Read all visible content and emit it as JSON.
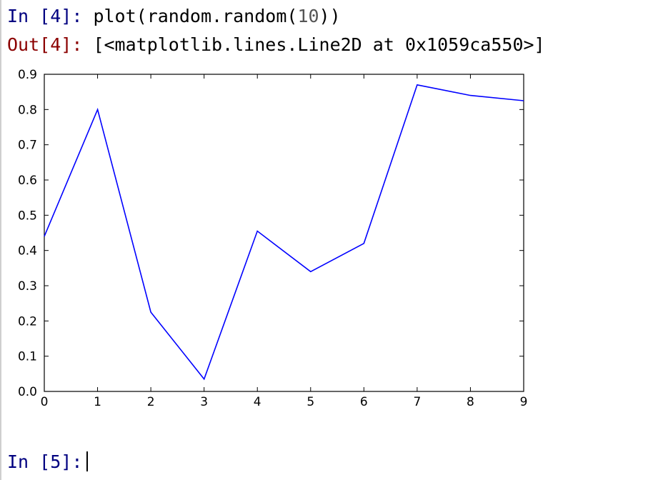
{
  "cells": {
    "in4": {
      "prompt_label": "In",
      "prompt_num": "4",
      "code_before": "plot(random.random(",
      "code_num": "10",
      "code_after": "))"
    },
    "out4": {
      "prompt_label": "Out",
      "prompt_num": "4",
      "text": "[<matplotlib.lines.Line2D at 0x1059ca550>]"
    },
    "in5": {
      "prompt_label": "In",
      "prompt_num": "5"
    }
  },
  "chart_data": {
    "type": "line",
    "x": [
      0,
      1,
      2,
      3,
      4,
      5,
      6,
      7,
      8,
      9
    ],
    "series": [
      {
        "values": [
          0.44,
          0.8,
          0.225,
          0.035,
          0.455,
          0.34,
          0.42,
          0.87,
          0.84,
          0.825
        ],
        "color": "#0000ff"
      }
    ],
    "xlim": [
      0,
      9
    ],
    "ylim": [
      0.0,
      0.9
    ],
    "xticks": [
      "0",
      "1",
      "2",
      "3",
      "4",
      "5",
      "6",
      "7",
      "8",
      "9"
    ],
    "yticks": [
      "0.0",
      "0.1",
      "0.2",
      "0.3",
      "0.4",
      "0.5",
      "0.6",
      "0.7",
      "0.8",
      "0.9"
    ],
    "grid": false
  }
}
